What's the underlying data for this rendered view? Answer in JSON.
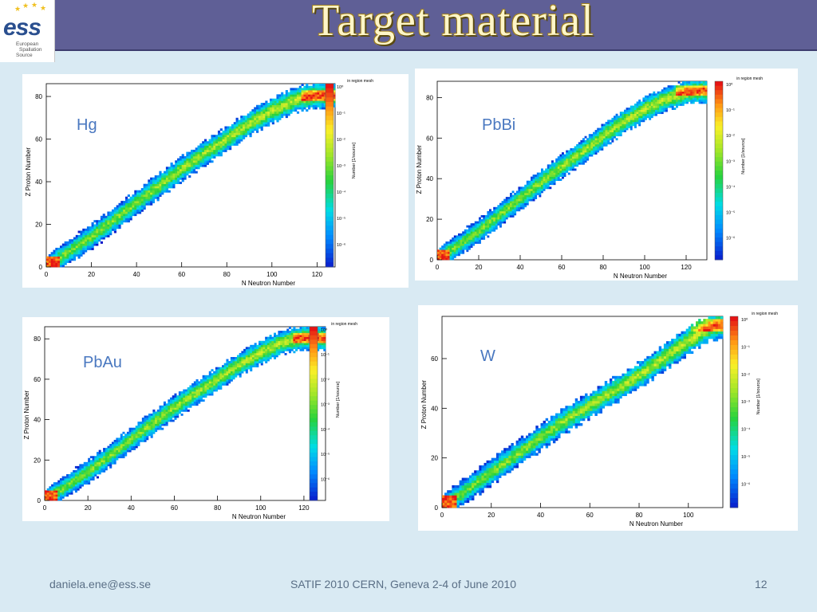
{
  "slide": {
    "title": "Target material",
    "footer_left": "daniela.ene@ess.se",
    "footer_center": "SATIF 2010 CERN, Geneva 2-4 of June 2010",
    "footer_right": "12",
    "logo_text": "ess",
    "logo_subtext": [
      "European",
      "Spallation",
      "Source"
    ]
  },
  "colors": {
    "title_bar": "#5f5f96",
    "title_text": "#fff6c8",
    "background": "#d9eaf3",
    "material_label": "#4a78c0"
  },
  "chart_data": [
    {
      "type": "heatmap",
      "material": "Hg",
      "xlabel": "N Neutron Number",
      "ylabel": "Z Proton Number",
      "colorbar_label": "Number [1/source]",
      "region_label": "in region mesh",
      "xlim": [
        0,
        128
      ],
      "ylim": [
        0,
        86
      ],
      "xticks": [
        0,
        20,
        40,
        60,
        80,
        100,
        120
      ],
      "yticks": [
        0,
        20,
        40,
        60,
        80
      ],
      "colorbar_ticks": [
        "10⁰",
        "10⁻¹",
        "10⁻²",
        "10⁻³",
        "10⁻⁴",
        "10⁻⁵",
        "10⁻⁶"
      ],
      "ridge": [
        [
          0,
          0
        ],
        [
          10,
          7
        ],
        [
          20,
          14
        ],
        [
          30,
          22
        ],
        [
          40,
          30
        ],
        [
          50,
          38
        ],
        [
          60,
          46
        ],
        [
          70,
          53
        ],
        [
          80,
          60
        ],
        [
          90,
          67
        ],
        [
          100,
          73
        ],
        [
          110,
          78
        ],
        [
          118,
          80
        ],
        [
          124,
          80
        ]
      ],
      "band_halfwidth": 5
    },
    {
      "type": "heatmap",
      "material": "PbBi",
      "xlabel": "N Neutron Number",
      "ylabel": "Z Proton Number",
      "colorbar_label": "Number [1/source]",
      "region_label": "in region mesh",
      "xlim": [
        0,
        130
      ],
      "ylim": [
        0,
        88
      ],
      "xticks": [
        0,
        20,
        40,
        60,
        80,
        100,
        120
      ],
      "yticks": [
        0,
        20,
        40,
        60,
        80
      ],
      "colorbar_ticks": [
        "10⁰",
        "10⁻¹",
        "10⁻²",
        "10⁻³",
        "10⁻⁴",
        "10⁻⁵",
        "10⁻⁶"
      ],
      "ridge": [
        [
          0,
          0
        ],
        [
          10,
          7
        ],
        [
          20,
          14
        ],
        [
          30,
          22
        ],
        [
          40,
          30
        ],
        [
          50,
          38
        ],
        [
          60,
          46
        ],
        [
          70,
          53
        ],
        [
          80,
          61
        ],
        [
          90,
          68
        ],
        [
          100,
          74
        ],
        [
          110,
          79
        ],
        [
          120,
          82
        ],
        [
          127,
          83
        ]
      ],
      "band_halfwidth": 5
    },
    {
      "type": "heatmap",
      "material": "PbAu",
      "xlabel": "N Neutron Number",
      "ylabel": "Z Proton Number",
      "colorbar_label": "Number [1/source]",
      "region_label": "in region mesh",
      "xlim": [
        0,
        130
      ],
      "ylim": [
        0,
        86
      ],
      "xticks": [
        0,
        20,
        40,
        60,
        80,
        100,
        120
      ],
      "yticks": [
        0,
        20,
        40,
        60,
        80
      ],
      "colorbar_ticks": [
        "10⁰",
        "10⁻¹",
        "10⁻²",
        "10⁻³",
        "10⁻⁴",
        "10⁻⁵",
        "10⁻⁶"
      ],
      "ridge": [
        [
          0,
          0
        ],
        [
          10,
          7
        ],
        [
          20,
          14
        ],
        [
          30,
          22
        ],
        [
          40,
          30
        ],
        [
          50,
          38
        ],
        [
          60,
          46
        ],
        [
          70,
          53
        ],
        [
          80,
          60
        ],
        [
          90,
          67
        ],
        [
          100,
          73
        ],
        [
          110,
          78
        ],
        [
          118,
          80
        ],
        [
          126,
          80
        ]
      ],
      "band_halfwidth": 5
    },
    {
      "type": "heatmap",
      "material": "W",
      "xlabel": "N Neutron Number",
      "ylabel": "Z Proton Number",
      "colorbar_label": "Number [1/source]",
      "region_label": "in region mesh",
      "xlim": [
        0,
        114
      ],
      "ylim": [
        0,
        77
      ],
      "xticks": [
        0,
        20,
        40,
        60,
        80,
        100
      ],
      "yticks": [
        0,
        20,
        40,
        60
      ],
      "colorbar_ticks": [
        "10⁰",
        "10⁻¹",
        "10⁻²",
        "10⁻³",
        "10⁻⁴",
        "10⁻⁵",
        "10⁻⁶"
      ],
      "ridge": [
        [
          0,
          0
        ],
        [
          10,
          7
        ],
        [
          20,
          14
        ],
        [
          30,
          21
        ],
        [
          40,
          28
        ],
        [
          50,
          35
        ],
        [
          60,
          41
        ],
        [
          70,
          47
        ],
        [
          80,
          53
        ],
        [
          90,
          60
        ],
        [
          100,
          67
        ],
        [
          108,
          72
        ],
        [
          113,
          73
        ]
      ],
      "band_halfwidth": 4.5
    }
  ]
}
